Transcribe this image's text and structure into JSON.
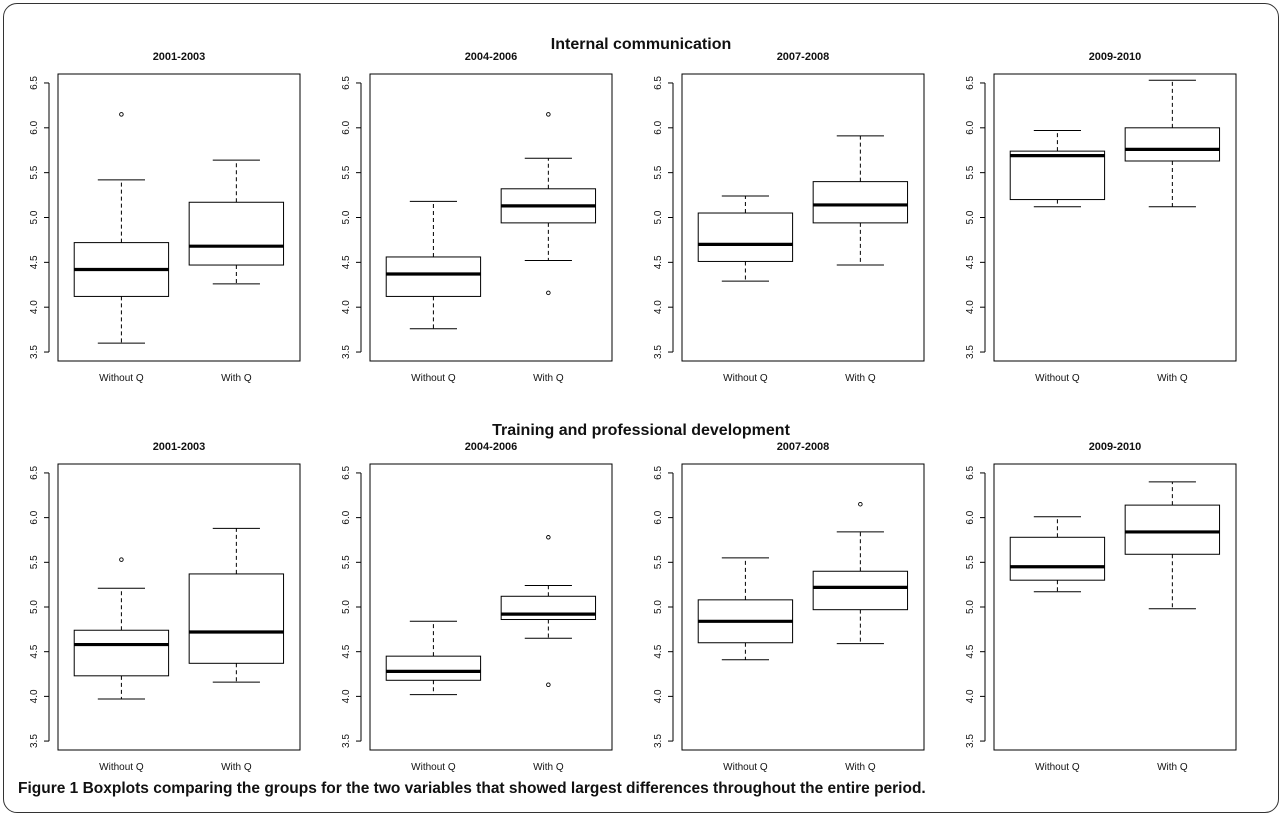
{
  "colors": {
    "frame": "#333333",
    "axis": "#000000",
    "median": "#000000"
  },
  "sections": [
    {
      "title": "Internal communication"
    },
    {
      "title": "Training and professional development"
    }
  ],
  "caption": {
    "label": "Figure 1",
    "text": "Boxplots comparing the groups for the two variables that showed largest differences throughout the entire period."
  },
  "chart_data": [
    {
      "type": "boxplot",
      "section": "Internal communication",
      "title": "2001-2003",
      "categories": [
        "Without Q",
        "With Q"
      ],
      "ylim": [
        3.4,
        6.6
      ],
      "yticks": [
        "3.5",
        "4.0",
        "4.5",
        "5.0",
        "5.5",
        "6.0",
        "6.5"
      ],
      "boxes": [
        {
          "name": "Without Q",
          "whisker_low": 3.6,
          "q1": 4.12,
          "median": 4.42,
          "q3": 4.72,
          "whisker_high": 5.42,
          "outliers": [
            6.15
          ]
        },
        {
          "name": "With Q",
          "whisker_low": 4.26,
          "q1": 4.47,
          "median": 4.68,
          "q3": 5.17,
          "whisker_high": 5.64,
          "outliers": []
        }
      ]
    },
    {
      "type": "boxplot",
      "section": "Internal communication",
      "title": "2004-2006",
      "categories": [
        "Without Q",
        "With Q"
      ],
      "ylim": [
        3.4,
        6.6
      ],
      "yticks": [
        "3.5",
        "4.0",
        "4.5",
        "5.0",
        "5.5",
        "6.0",
        "6.5"
      ],
      "boxes": [
        {
          "name": "Without Q",
          "whisker_low": 3.76,
          "q1": 4.12,
          "median": 4.37,
          "q3": 4.56,
          "whisker_high": 5.18,
          "outliers": []
        },
        {
          "name": "With Q",
          "whisker_low": 4.52,
          "q1": 4.94,
          "median": 5.13,
          "q3": 5.32,
          "whisker_high": 5.66,
          "outliers": [
            6.15,
            4.16
          ]
        }
      ]
    },
    {
      "type": "boxplot",
      "section": "Internal communication",
      "title": "2007-2008",
      "categories": [
        "Without Q",
        "With Q"
      ],
      "ylim": [
        3.4,
        6.6
      ],
      "yticks": [
        "3.5",
        "4.0",
        "4.5",
        "5.0",
        "5.5",
        "6.0",
        "6.5"
      ],
      "boxes": [
        {
          "name": "Without Q",
          "whisker_low": 4.29,
          "q1": 4.51,
          "median": 4.7,
          "q3": 5.05,
          "whisker_high": 5.24,
          "outliers": []
        },
        {
          "name": "With Q",
          "whisker_low": 4.47,
          "q1": 4.94,
          "median": 5.14,
          "q3": 5.4,
          "whisker_high": 5.91,
          "outliers": []
        }
      ]
    },
    {
      "type": "boxplot",
      "section": "Internal communication",
      "title": "2009-2010",
      "categories": [
        "Without Q",
        "With Q"
      ],
      "ylim": [
        3.4,
        6.6
      ],
      "yticks": [
        "3.5",
        "4.0",
        "4.5",
        "5.0",
        "5.5",
        "6.0",
        "6.5"
      ],
      "boxes": [
        {
          "name": "Without Q",
          "whisker_low": 5.12,
          "q1": 5.2,
          "median": 5.69,
          "q3": 5.74,
          "whisker_high": 5.97,
          "outliers": []
        },
        {
          "name": "With Q",
          "whisker_low": 5.12,
          "q1": 5.63,
          "median": 5.76,
          "q3": 6.0,
          "whisker_high": 6.53,
          "outliers": []
        }
      ]
    },
    {
      "type": "boxplot",
      "section": "Training and professional development",
      "title": "2001-2003",
      "categories": [
        "Without Q",
        "With Q"
      ],
      "ylim": [
        3.4,
        6.6
      ],
      "yticks": [
        "3.5",
        "4.0",
        "4.5",
        "5.0",
        "5.5",
        "6.0",
        "6.5"
      ],
      "boxes": [
        {
          "name": "Without Q",
          "whisker_low": 3.97,
          "q1": 4.23,
          "median": 4.58,
          "q3": 4.74,
          "whisker_high": 5.21,
          "outliers": [
            5.53
          ]
        },
        {
          "name": "With Q",
          "whisker_low": 4.16,
          "q1": 4.37,
          "median": 4.72,
          "q3": 5.37,
          "whisker_high": 5.88,
          "outliers": []
        }
      ]
    },
    {
      "type": "boxplot",
      "section": "Training and professional development",
      "title": "2004-2006",
      "categories": [
        "Without Q",
        "With Q"
      ],
      "ylim": [
        3.4,
        6.6
      ],
      "yticks": [
        "3.5",
        "4.0",
        "4.5",
        "5.0",
        "5.5",
        "6.0",
        "6.5"
      ],
      "boxes": [
        {
          "name": "Without Q",
          "whisker_low": 4.02,
          "q1": 4.18,
          "median": 4.28,
          "q3": 4.45,
          "whisker_high": 4.84,
          "outliers": []
        },
        {
          "name": "With Q",
          "whisker_low": 4.65,
          "q1": 4.86,
          "median": 4.92,
          "q3": 5.12,
          "whisker_high": 5.24,
          "outliers": [
            5.78,
            4.13
          ]
        }
      ]
    },
    {
      "type": "boxplot",
      "section": "Training and professional development",
      "title": "2007-2008",
      "categories": [
        "Without Q",
        "With Q"
      ],
      "ylim": [
        3.4,
        6.6
      ],
      "yticks": [
        "3.5",
        "4.0",
        "4.5",
        "5.0",
        "5.5",
        "6.0",
        "6.5"
      ],
      "boxes": [
        {
          "name": "Without Q",
          "whisker_low": 4.41,
          "q1": 4.6,
          "median": 4.84,
          "q3": 5.08,
          "whisker_high": 5.55,
          "outliers": []
        },
        {
          "name": "With Q",
          "whisker_low": 4.59,
          "q1": 4.97,
          "median": 5.22,
          "q3": 5.4,
          "whisker_high": 5.84,
          "outliers": [
            6.15
          ]
        }
      ]
    },
    {
      "type": "boxplot",
      "section": "Training and professional development",
      "title": "2009-2010",
      "categories": [
        "Without Q",
        "With Q"
      ],
      "ylim": [
        3.4,
        6.6
      ],
      "yticks": [
        "3.5",
        "4.0",
        "4.5",
        "5.0",
        "5.5",
        "6.0",
        "6.5"
      ],
      "boxes": [
        {
          "name": "Without Q",
          "whisker_low": 5.17,
          "q1": 5.3,
          "median": 5.45,
          "q3": 5.78,
          "whisker_high": 6.01,
          "outliers": []
        },
        {
          "name": "With Q",
          "whisker_low": 4.98,
          "q1": 5.59,
          "median": 5.84,
          "q3": 6.14,
          "whisker_high": 6.4,
          "outliers": []
        }
      ]
    }
  ]
}
